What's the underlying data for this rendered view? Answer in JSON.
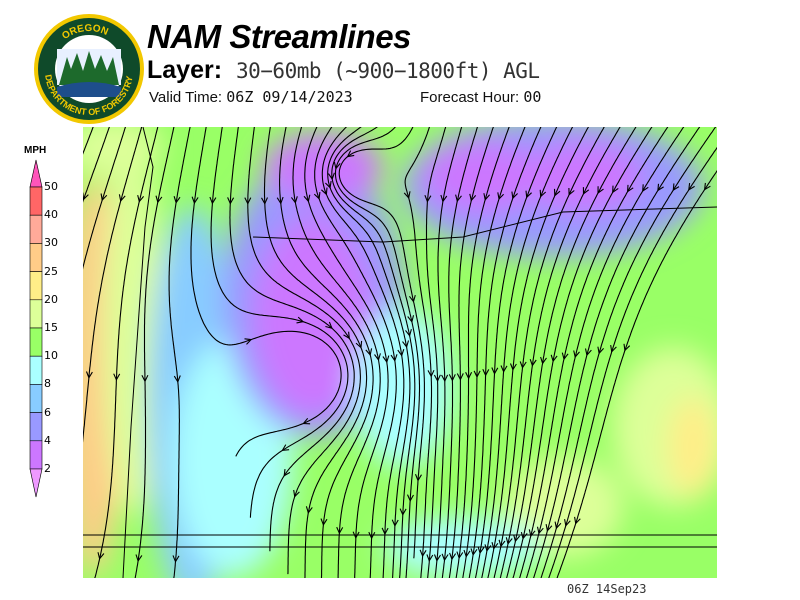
{
  "header": {
    "logo_text_top": "OREGON",
    "logo_text_bottom": "DEPARTMENT OF FORESTRY",
    "title": "NAM Streamlines",
    "layer_label": "Layer:",
    "layer_value": "30−60mb (~900−1800ft) AGL",
    "valid_label": "Valid Time:",
    "valid_value": "06Z 09/14/2023",
    "forecast_label": "Forecast Hour:",
    "forecast_value": "00"
  },
  "colorbar": {
    "unit": "MPH",
    "labels": [
      "50",
      "40",
      "30",
      "25",
      "20",
      "15",
      "10",
      "8",
      "6",
      "4",
      "2"
    ],
    "colors": [
      "#ff55bb",
      "#ff6666",
      "#ffaa99",
      "#ffcc88",
      "#ffee88",
      "#ddff99",
      "#99ff66",
      "#aaffff",
      "#88ccff",
      "#9999ff",
      "#cc77ff",
      "#ee99ff"
    ]
  },
  "map": {
    "background_color": "#99ff66",
    "streamline_color": "#000000"
  },
  "footer": {
    "timestamp": "06Z 14Sep23"
  }
}
